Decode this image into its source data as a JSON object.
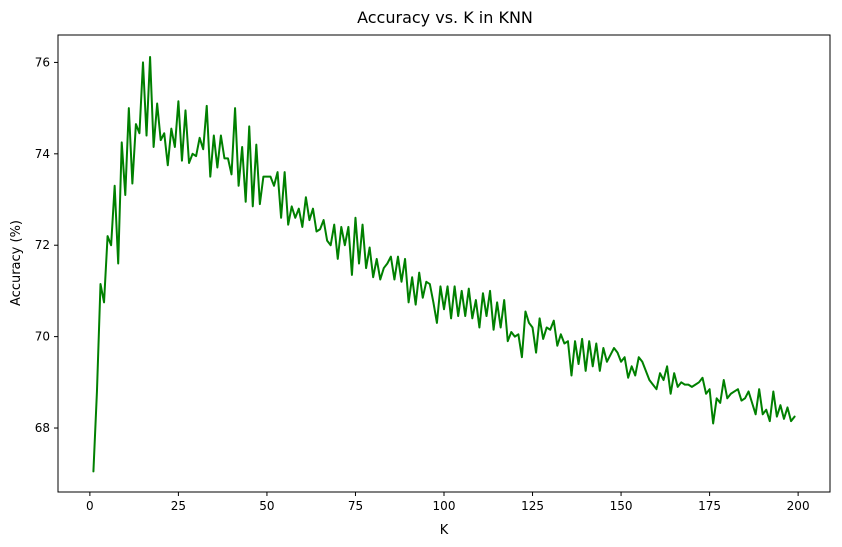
{
  "chart_data": {
    "type": "line",
    "title": "Accuracy vs. K in KNN",
    "xlabel": "K",
    "ylabel": "Accuracy (%)",
    "xlim": [
      -9,
      209
    ],
    "ylim": [
      66.6,
      76.6
    ],
    "xticks": [
      0,
      25,
      50,
      75,
      100,
      125,
      150,
      175,
      200
    ],
    "xtick_labels": [
      "0",
      "25",
      "50",
      "75",
      "100",
      "125",
      "150",
      "175",
      "200"
    ],
    "yticks": [
      68,
      70,
      72,
      74,
      76
    ],
    "ytick_labels": [
      "68",
      "70",
      "72",
      "74",
      "76"
    ],
    "grid": false,
    "line_color": "#008000",
    "series": [
      {
        "x": [
          1,
          2,
          3,
          4,
          5,
          6,
          7,
          8,
          9,
          10,
          11,
          12,
          13,
          14,
          15,
          16,
          17,
          18,
          19,
          20,
          21,
          22,
          23,
          24,
          25,
          26,
          27,
          28,
          29,
          30,
          31,
          32,
          33,
          34,
          35,
          36,
          37,
          38,
          39,
          40,
          41,
          42,
          43,
          44,
          45,
          46,
          47,
          48,
          49,
          50,
          51,
          52,
          53,
          54,
          55,
          56,
          57,
          58,
          59,
          60,
          61,
          62,
          63,
          64,
          65,
          66,
          67,
          68,
          69,
          70,
          71,
          72,
          73,
          74,
          75,
          76,
          77,
          78,
          79,
          80,
          81,
          82,
          83,
          84,
          85,
          86,
          87,
          88,
          89,
          90,
          91,
          92,
          93,
          94,
          95,
          96,
          97,
          98,
          99,
          100,
          101,
          102,
          103,
          104,
          105,
          106,
          107,
          108,
          109,
          110,
          111,
          112,
          113,
          114,
          115,
          116,
          117,
          118,
          119,
          120,
          121,
          122,
          123,
          124,
          125,
          126,
          127,
          128,
          129,
          130,
          131,
          132,
          133,
          134,
          135,
          136,
          137,
          138,
          139,
          140,
          141,
          142,
          143,
          144,
          145,
          146,
          147,
          148,
          149,
          150,
          151,
          152,
          153,
          154,
          155,
          156,
          157,
          158,
          159,
          160,
          161,
          162,
          163,
          164,
          165,
          166,
          167,
          168,
          169,
          170,
          171,
          172,
          173,
          174,
          175,
          176,
          177,
          178,
          179,
          180,
          181,
          182,
          183,
          184,
          185,
          186,
          187,
          188,
          189,
          190,
          191,
          192,
          193,
          194,
          195,
          196,
          197,
          198,
          199
        ],
        "values": [
          67.05,
          68.8,
          71.15,
          70.75,
          72.2,
          72.0,
          73.3,
          71.6,
          74.25,
          73.1,
          75.0,
          73.35,
          74.65,
          74.45,
          76.0,
          74.4,
          76.12,
          74.15,
          75.1,
          74.3,
          74.45,
          73.75,
          74.55,
          74.15,
          75.15,
          73.85,
          74.95,
          73.8,
          74.0,
          73.95,
          74.35,
          74.1,
          75.05,
          73.5,
          74.4,
          73.7,
          74.4,
          73.9,
          73.9,
          73.55,
          75.0,
          73.3,
          74.15,
          72.95,
          74.6,
          72.85,
          74.2,
          72.9,
          73.5,
          73.5,
          73.5,
          73.3,
          73.6,
          72.6,
          73.6,
          72.45,
          72.85,
          72.6,
          72.8,
          72.4,
          73.05,
          72.55,
          72.8,
          72.3,
          72.35,
          72.55,
          72.1,
          72.0,
          72.45,
          71.7,
          72.4,
          72.0,
          72.4,
          71.35,
          72.6,
          71.6,
          72.45,
          71.5,
          71.95,
          71.3,
          71.7,
          71.25,
          71.5,
          71.6,
          71.75,
          71.25,
          71.75,
          71.2,
          71.7,
          70.75,
          71.3,
          70.7,
          71.4,
          70.85,
          71.2,
          71.15,
          70.75,
          70.3,
          71.1,
          70.6,
          71.1,
          70.4,
          71.1,
          70.45,
          71.0,
          70.45,
          71.05,
          70.4,
          70.8,
          70.2,
          70.95,
          70.45,
          71.0,
          70.15,
          70.75,
          70.2,
          70.8,
          69.9,
          70.1,
          70.0,
          70.05,
          69.55,
          70.55,
          70.3,
          70.2,
          69.65,
          70.4,
          69.95,
          70.2,
          70.15,
          70.35,
          69.8,
          70.05,
          69.85,
          69.9,
          69.15,
          69.9,
          69.4,
          69.95,
          69.25,
          69.9,
          69.35,
          69.85,
          69.25,
          69.75,
          69.45,
          69.6,
          69.75,
          69.65,
          69.45,
          69.55,
          69.1,
          69.35,
          69.15,
          69.55,
          69.45,
          69.25,
          69.05,
          68.95,
          68.85,
          69.2,
          69.05,
          69.35,
          68.75,
          69.2,
          68.9,
          69.0,
          68.95,
          68.95,
          68.9,
          68.95,
          69.0,
          69.1,
          68.75,
          68.85,
          68.1,
          68.65,
          68.55,
          69.05,
          68.65,
          68.75,
          68.8,
          68.85,
          68.6,
          68.65,
          68.8,
          68.55,
          68.3,
          68.85,
          68.3,
          68.4,
          68.15,
          68.8,
          68.25,
          68.5,
          68.2,
          68.45,
          68.15,
          68.25
        ]
      }
    ]
  }
}
